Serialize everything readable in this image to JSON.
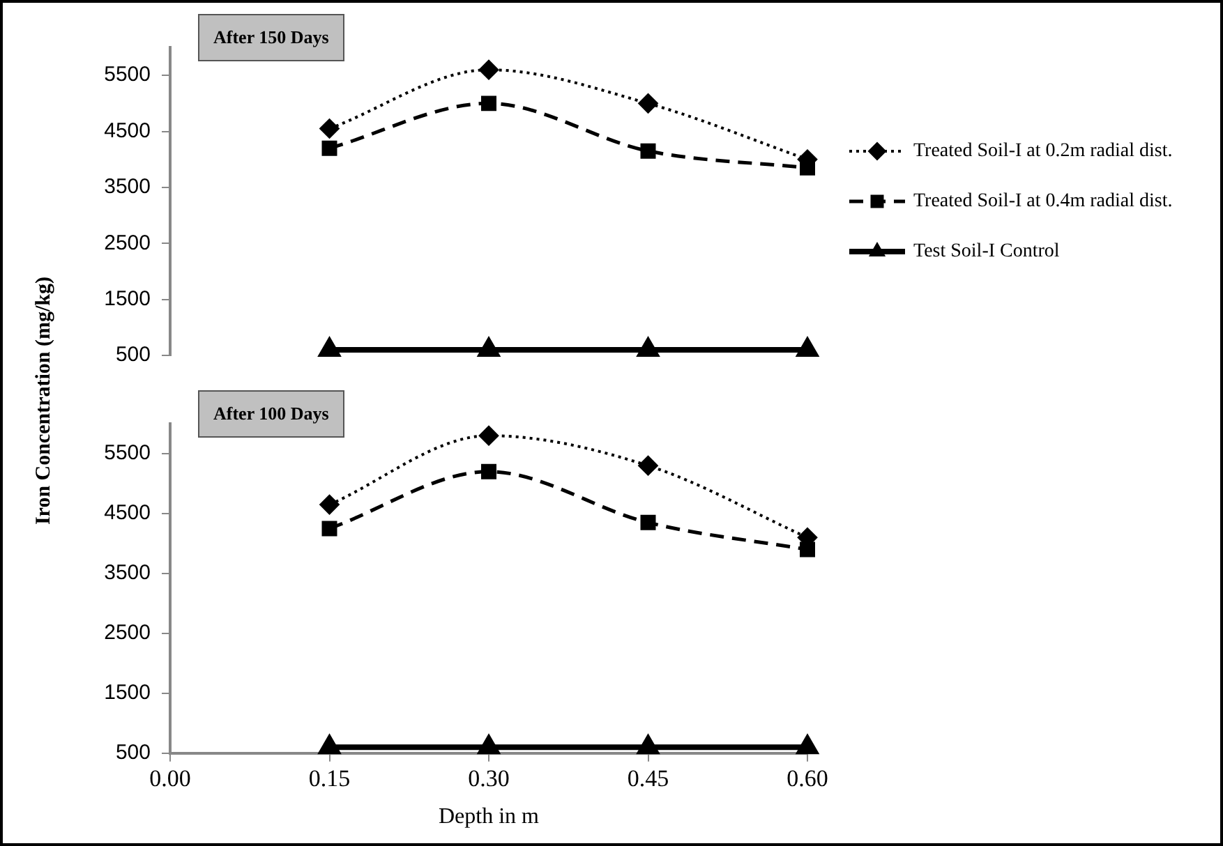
{
  "chart_data": [
    {
      "type": "line",
      "title": "After 150 Days",
      "ylabel": "Iron Concentration (mg/kg)",
      "x": [
        0.15,
        0.3,
        0.45,
        0.6
      ],
      "xlim": [
        0,
        0.6
      ],
      "ylim": [
        500,
        6000
      ],
      "yticks": [
        500,
        1500,
        2500,
        3500,
        4500,
        5500
      ],
      "tick_labels": "y",
      "legend": "right",
      "grid": false,
      "series": [
        {
          "name": "Treated Soil-I at 0.2m radial dist.",
          "color": "#000000",
          "marker": "diamond",
          "line_style": "dotted",
          "values": [
            4550,
            5600,
            5000,
            4000
          ]
        },
        {
          "name": "Treated Soil-I at 0.4m radial dist.",
          "color": "#000000",
          "marker": "square",
          "line_style": "dashed",
          "values": [
            4200,
            5000,
            4150,
            3850
          ]
        },
        {
          "name": "Test Soil-I Control",
          "color": "#000000",
          "marker": "triangle",
          "line_style": "solid",
          "values": [
            600,
            600,
            600,
            600
          ]
        }
      ]
    },
    {
      "type": "line",
      "title": "After 100 Days",
      "xlabel": "Depth in m",
      "x": [
        0.15,
        0.3,
        0.45,
        0.6
      ],
      "xlim": [
        0,
        0.6
      ],
      "xticks": [
        {
          "value": 0,
          "label": "0.00"
        },
        {
          "value": 0.15,
          "label": "0.15"
        },
        {
          "value": 0.3,
          "label": "0.30"
        },
        {
          "value": 0.45,
          "label": "0.45"
        },
        {
          "value": 0.6,
          "label": "0.60"
        }
      ],
      "ylim": [
        500,
        6000
      ],
      "yticks": [
        500,
        1500,
        2500,
        3500,
        4500,
        5500
      ],
      "grid": false,
      "series": [
        {
          "color": "#000000",
          "marker": "diamond",
          "line_style": "dotted",
          "values": [
            4650,
            5800,
            5300,
            4100
          ]
        },
        {
          "color": "#000000",
          "marker": "square",
          "line_style": "dashed",
          "values": [
            4250,
            5200,
            4350,
            3900
          ]
        },
        {
          "color": "#000000",
          "marker": "triangle",
          "line_style": "solid",
          "values": [
            600,
            600,
            600,
            600
          ]
        }
      ]
    }
  ]
}
